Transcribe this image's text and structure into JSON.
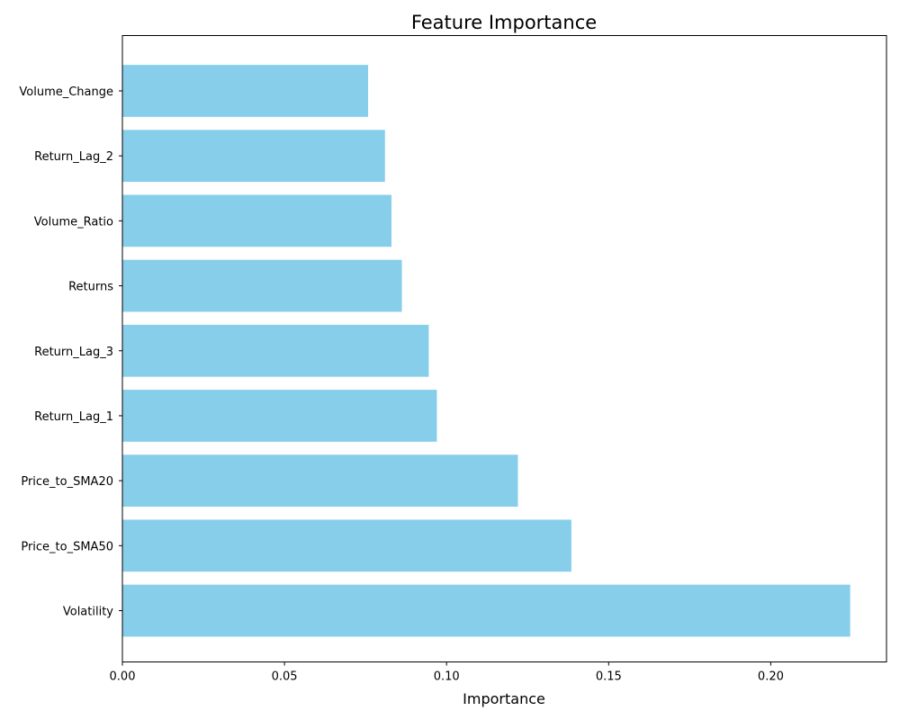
{
  "chart_data": {
    "type": "bar",
    "orientation": "horizontal",
    "title": "Feature Importance",
    "xlabel": "Importance",
    "ylabel": "",
    "categories": [
      "Volatility",
      "Price_to_SMA50",
      "Price_to_SMA20",
      "Return_Lag_1",
      "Return_Lag_3",
      "Returns",
      "Volume_Ratio",
      "Return_Lag_2",
      "Volume_Change"
    ],
    "values": [
      0.2245,
      0.1385,
      0.122,
      0.097,
      0.0945,
      0.0862,
      0.083,
      0.081,
      0.0758
    ],
    "xlim": [
      0,
      0.2357
    ],
    "xticks": [
      0.0,
      0.05,
      0.1,
      0.15,
      0.2
    ],
    "xtick_labels": [
      "0.00",
      "0.05",
      "0.10",
      "0.15",
      "0.20"
    ],
    "bar_color": "#87CEEB",
    "grid": false,
    "legend": "none"
  }
}
